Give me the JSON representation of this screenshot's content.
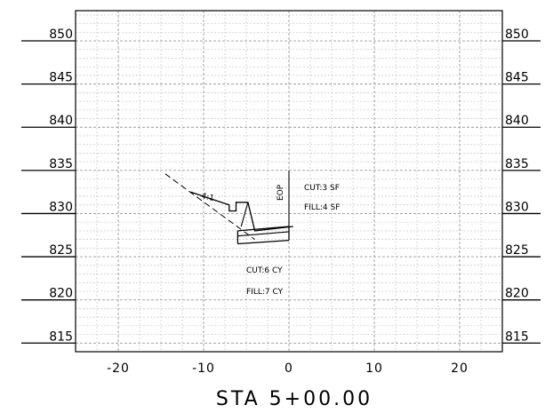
{
  "chart_data": {
    "type": "cross-section",
    "title": "STA 5+00.00",
    "x_ticks": [
      "-20",
      "-10",
      "0",
      "10",
      "20"
    ],
    "x_tick_values": [
      -20,
      -10,
      0,
      10,
      20
    ],
    "y_ticks": [
      "850",
      "845",
      "840",
      "835",
      "830",
      "825",
      "820",
      "815"
    ],
    "y_tick_values": [
      850,
      845,
      840,
      835,
      830,
      825,
      820,
      815
    ],
    "xlim": [
      -25,
      25
    ],
    "ylim": [
      814,
      853.5
    ],
    "grid": true,
    "annotations": {
      "slope": "4:1",
      "eop": "EOP",
      "cut_area": "CUT:3 SF",
      "fill_area": "FILL:4 SF",
      "cut_volume": "CUT:6 CY",
      "fill_volume": "FILL:7 CY"
    },
    "existing_ground": [
      [
        -14.5,
        834.6
      ],
      [
        -4.0,
        827.0
      ]
    ],
    "proposed_section": [
      [
        -11.5,
        832.5
      ],
      [
        -7.0,
        831.0
      ],
      [
        -7.0,
        830.3
      ],
      [
        -6.2,
        830.3
      ],
      [
        -6.2,
        831.3
      ],
      [
        -4.8,
        831.3
      ],
      [
        -4.0,
        828.0
      ],
      [
        0.5,
        828.5
      ]
    ],
    "pavement": {
      "top": [
        [
          -6.0,
          828.0
        ],
        [
          0.0,
          828.5
        ]
      ],
      "bottom": [
        [
          -6.0,
          826.5
        ],
        [
          0.0,
          826.9
        ]
      ],
      "base_top": [
        [
          -6.0,
          827.4
        ],
        [
          0.0,
          827.9
        ]
      ]
    },
    "eop_x": 0,
    "eop_line": [
      835.0,
      828.4
    ]
  }
}
